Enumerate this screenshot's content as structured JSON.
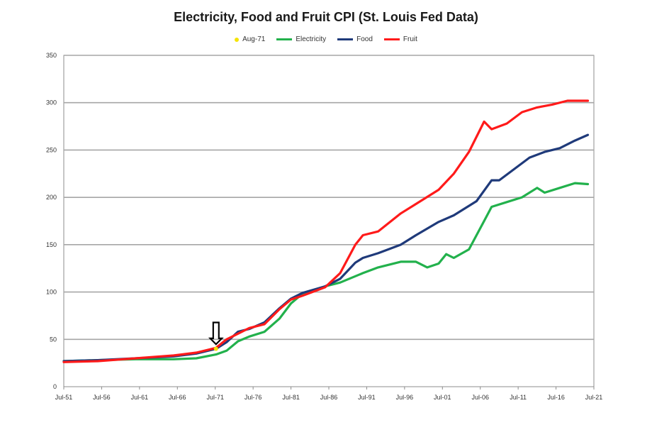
{
  "chart_data": {
    "type": "line",
    "title": "Electricity, Food and Fruit CPI (St. Louis Fed Data)",
    "xlabel": "",
    "ylabel": "",
    "xlim": [
      "Jul-51",
      "Jul-21"
    ],
    "ylim": [
      0,
      350
    ],
    "x_ticks": [
      "Jul-51",
      "Jul-56",
      "Jul-61",
      "Jul-66",
      "Jul-71",
      "Jul-76",
      "Jul-81",
      "Jul-86",
      "Jul-91",
      "Jul-96",
      "Jul-01",
      "Jul-06",
      "Jul-11",
      "Jul-16",
      "Jul-21"
    ],
    "y_ticks": [
      0,
      50,
      100,
      150,
      200,
      250,
      300,
      350
    ],
    "grid": true,
    "legend_position": "top-center",
    "series": [
      {
        "name": "Aug-71",
        "kind": "marker",
        "color": "#f5e400",
        "points": [
          [
            1971.6,
            40
          ]
        ]
      },
      {
        "name": "Electricity",
        "color": "#22b14c",
        "points": [
          [
            1951.5,
            27
          ],
          [
            1956,
            28
          ],
          [
            1961,
            29
          ],
          [
            1966,
            29
          ],
          [
            1969,
            30
          ],
          [
            1971.6,
            34
          ],
          [
            1973,
            38
          ],
          [
            1974.5,
            48
          ],
          [
            1976,
            53
          ],
          [
            1978,
            58
          ],
          [
            1980,
            72
          ],
          [
            1981.5,
            88
          ],
          [
            1983,
            98
          ],
          [
            1986,
            106
          ],
          [
            1988,
            110
          ],
          [
            1991,
            120
          ],
          [
            1993,
            126
          ],
          [
            1996,
            132
          ],
          [
            1998,
            132
          ],
          [
            1999.5,
            126
          ],
          [
            2001,
            130
          ],
          [
            2002,
            140
          ],
          [
            2003,
            136
          ],
          [
            2005,
            145
          ],
          [
            2006,
            160
          ],
          [
            2007,
            175
          ],
          [
            2008,
            190
          ],
          [
            2010,
            195
          ],
          [
            2012,
            200
          ],
          [
            2014,
            210
          ],
          [
            2015,
            205
          ],
          [
            2017,
            210
          ],
          [
            2019,
            215
          ],
          [
            2020.7,
            214
          ]
        ]
      },
      {
        "name": "Food",
        "color": "#1f3a7a",
        "points": [
          [
            1951.5,
            27
          ],
          [
            1956,
            28
          ],
          [
            1961,
            30
          ],
          [
            1966,
            32
          ],
          [
            1969,
            35
          ],
          [
            1971.6,
            40
          ],
          [
            1973,
            47
          ],
          [
            1974.5,
            58
          ],
          [
            1976,
            61
          ],
          [
            1978,
            68
          ],
          [
            1980,
            83
          ],
          [
            1981.5,
            93
          ],
          [
            1983,
            99
          ],
          [
            1986,
            106
          ],
          [
            1988,
            114
          ],
          [
            1990,
            131
          ],
          [
            1991,
            136
          ],
          [
            1993,
            141
          ],
          [
            1996,
            150
          ],
          [
            1998,
            160
          ],
          [
            2001,
            174
          ],
          [
            2003,
            181
          ],
          [
            2006,
            196
          ],
          [
            2008,
            218
          ],
          [
            2009,
            218
          ],
          [
            2011,
            230
          ],
          [
            2013,
            242
          ],
          [
            2015,
            248
          ],
          [
            2017,
            252
          ],
          [
            2019,
            260
          ],
          [
            2020.7,
            266
          ]
        ]
      },
      {
        "name": "Fruit",
        "color": "#ff1a1a",
        "points": [
          [
            1951.5,
            26
          ],
          [
            1956,
            27
          ],
          [
            1961,
            30
          ],
          [
            1966,
            33
          ],
          [
            1969,
            36
          ],
          [
            1971.6,
            41
          ],
          [
            1973,
            50
          ],
          [
            1974.5,
            56
          ],
          [
            1976,
            62
          ],
          [
            1978,
            66
          ],
          [
            1980,
            82
          ],
          [
            1981.5,
            92
          ],
          [
            1983,
            96
          ],
          [
            1986,
            105
          ],
          [
            1988,
            120
          ],
          [
            1990,
            150
          ],
          [
            1991,
            160
          ],
          [
            1993,
            164
          ],
          [
            1996,
            183
          ],
          [
            1998,
            193
          ],
          [
            2001,
            208
          ],
          [
            2003,
            225
          ],
          [
            2005,
            248
          ],
          [
            2007,
            280
          ],
          [
            2008,
            272
          ],
          [
            2010,
            278
          ],
          [
            2012,
            290
          ],
          [
            2014,
            295
          ],
          [
            2016,
            298
          ],
          [
            2018,
            302
          ],
          [
            2020.7,
            302
          ]
        ]
      }
    ]
  },
  "annotation": {
    "symbol": "⇩",
    "points_to": "Aug-71"
  }
}
